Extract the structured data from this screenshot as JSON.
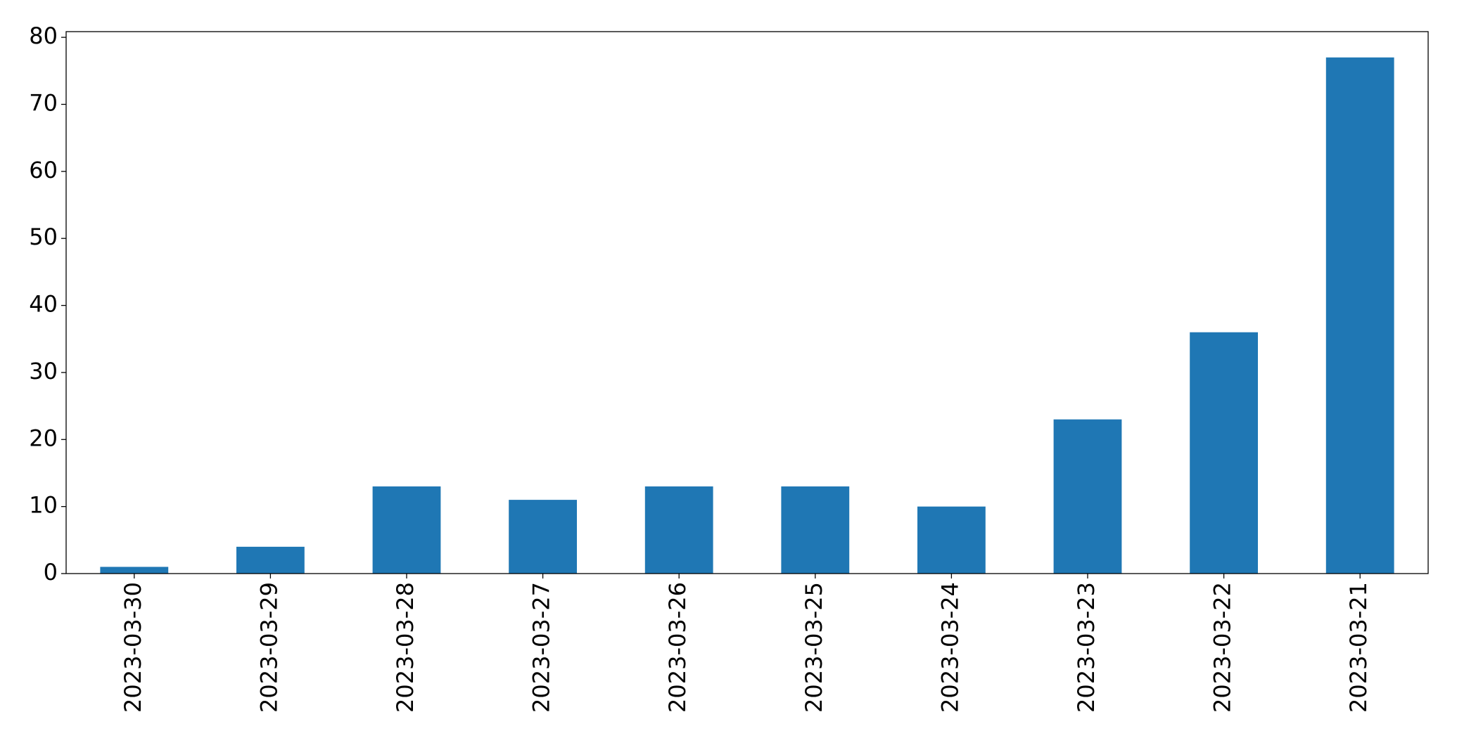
{
  "chart_data": {
    "type": "bar",
    "categories": [
      "2023-03-30",
      "2023-03-29",
      "2023-03-28",
      "2023-03-27",
      "2023-03-26",
      "2023-03-25",
      "2023-03-24",
      "2023-03-23",
      "2023-03-22",
      "2023-03-21"
    ],
    "values": [
      1,
      4,
      13,
      11,
      13,
      13,
      10,
      23,
      36,
      77
    ],
    "color": "#1f77b4",
    "ylim": [
      0,
      80.85
    ],
    "yticks": [
      0,
      10,
      20,
      30,
      40,
      50,
      60,
      70,
      80
    ],
    "grid": false
  }
}
